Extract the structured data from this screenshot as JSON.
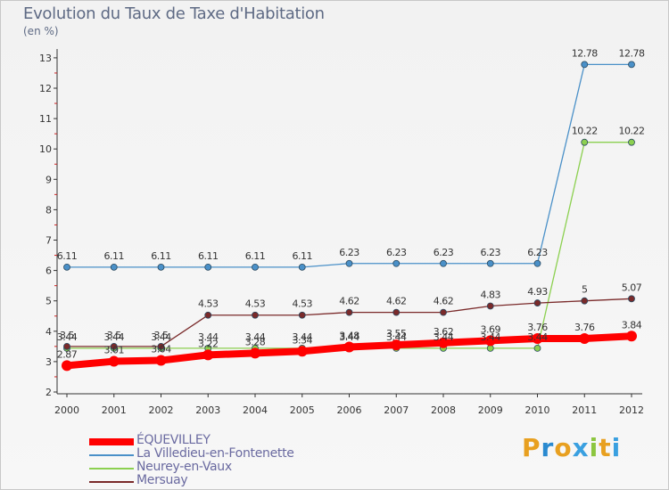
{
  "title": "Evolution du Taux de Taxe d'Habitation",
  "unit_label": "(en %)",
  "brand": {
    "text": "Proxiti",
    "letters": [
      "P",
      "r",
      "o",
      "x",
      "i",
      "t",
      "i"
    ],
    "letter_colors": [
      "#e8a020",
      "#2a8ad0",
      "#e8a020",
      "#3aa0e0",
      "#8cc63f",
      "#e8a020",
      "#3aa0e0"
    ]
  },
  "chart_data": {
    "type": "line",
    "title": "Evolution du Taux de Taxe d'Habitation",
    "ylabel": "(en %)",
    "xlabel": "",
    "x": [
      "2000",
      "2001",
      "2002",
      "2003",
      "2004",
      "2005",
      "2006",
      "2007",
      "2008",
      "2009",
      "2010",
      "2011",
      "2012"
    ],
    "ylim": [
      2,
      13
    ],
    "yticks": [
      2,
      3,
      4,
      5,
      6,
      7,
      8,
      9,
      10,
      11,
      12,
      13
    ],
    "grid": false,
    "legend_position": "bottom-left",
    "series": [
      {
        "name": "ÉQUEVILLEY",
        "color": "#ff0000",
        "values": [
          2.87,
          3.01,
          3.04,
          3.22,
          3.28,
          3.34,
          3.48,
          3.55,
          3.62,
          3.69,
          3.76,
          3.76,
          3.84
        ],
        "labels": [
          "2.87",
          "3.01",
          "3.04",
          "3.22",
          "3.28",
          "3.34",
          "3.48",
          "3.55",
          "3.62",
          "3.69",
          "3.76",
          "3.76",
          "3.84"
        ]
      },
      {
        "name": "La Villedieu-en-Fontenette",
        "color": "#4a90c8",
        "values": [
          6.11,
          6.11,
          6.11,
          6.11,
          6.11,
          6.11,
          6.23,
          6.23,
          6.23,
          6.23,
          6.23,
          12.78,
          12.78
        ],
        "labels": [
          "6.11",
          "6.11",
          "6.11",
          "6.11",
          "6.11",
          "6.11",
          "6.23",
          "6.23",
          "6.23",
          "6.23",
          "6.23",
          "12.78",
          "12.78"
        ]
      },
      {
        "name": "Neurey-en-Vaux",
        "color": "#8cd050",
        "values": [
          3.44,
          3.44,
          3.44,
          3.44,
          3.44,
          3.44,
          3.44,
          3.44,
          3.44,
          3.44,
          3.44,
          10.22,
          10.22
        ],
        "labels": [
          "3.44",
          "3.44",
          "3.44",
          "3.44",
          "3.44",
          "3.44",
          "3.44",
          "3.44",
          "3.44",
          "3.44",
          "3.44",
          "10.22",
          "10.22"
        ]
      },
      {
        "name": "Mersuay",
        "color": "#7a2a2a",
        "values": [
          3.5,
          3.5,
          3.5,
          4.53,
          4.53,
          4.53,
          4.62,
          4.62,
          4.62,
          4.83,
          4.93,
          5.0,
          5.07
        ],
        "labels": [
          "3.5",
          "3.5",
          "3.5",
          "4.53",
          "4.53",
          "4.53",
          "4.62",
          "4.62",
          "4.62",
          "4.83",
          "4.93",
          "5",
          "5.07"
        ]
      }
    ]
  }
}
